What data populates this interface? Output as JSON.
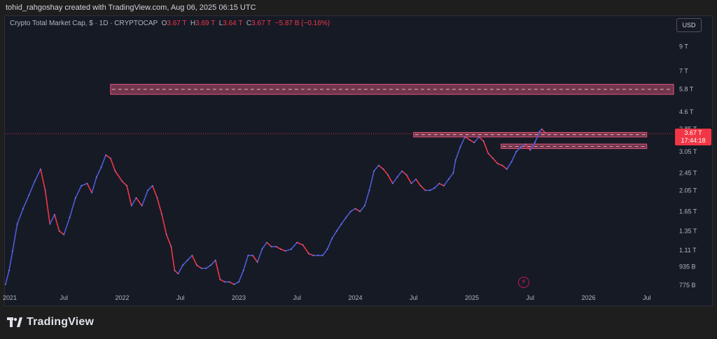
{
  "header": {
    "attribution": "tohid_rahgoshay created with TradingView.com, Aug 06, 2025 06:15 UTC"
  },
  "legend": {
    "symbol": "Crypto Total Market Cap, $ · 1D · CRYPTOCAP",
    "o_label": "O",
    "o_value": "3.67 T",
    "h_label": "H",
    "h_value": "3.69 T",
    "l_label": "L",
    "l_value": "3.64 T",
    "c_label": "C",
    "c_value": "3.67 T",
    "change": "−5.87 B (−0.16%)"
  },
  "currency_button": "USD",
  "last_price": {
    "value": "3.67 T",
    "countdown": "17:44:18"
  },
  "brand": {
    "name": "TradingView"
  },
  "colors": {
    "up": "#4d5bd6",
    "down": "#f23645",
    "zone": "#e0567c",
    "background": "#161a25"
  },
  "chart_data": {
    "type": "line",
    "title": "Crypto Total Market Cap, $ · 1D · CRYPTOCAP",
    "y_scale": "log",
    "ylim_trillions": [
      0.72,
      10.5
    ],
    "y_ticks": [
      {
        "label": "9 T",
        "value": 9.0
      },
      {
        "label": "7 T",
        "value": 7.0
      },
      {
        "label": "5.8 T",
        "value": 5.8
      },
      {
        "label": "4.6 T",
        "value": 4.6
      },
      {
        "label": "3.85 T",
        "value": 3.85
      },
      {
        "label": "3.05 T",
        "value": 3.05
      },
      {
        "label": "2.45 T",
        "value": 2.45
      },
      {
        "label": "2.05 T",
        "value": 2.05
      },
      {
        "label": "1.65 T",
        "value": 1.65
      },
      {
        "label": "1.35 T",
        "value": 1.35
      },
      {
        "label": "1.11 T",
        "value": 1.11
      },
      {
        "label": "935 B",
        "value": 0.935
      },
      {
        "label": "775 B",
        "value": 0.775
      }
    ],
    "x_ticks": [
      {
        "label": "2021",
        "t": 2021.0
      },
      {
        "label": "Jul",
        "t": 2021.5
      },
      {
        "label": "2022",
        "t": 2022.0
      },
      {
        "label": "Jul",
        "t": 2022.5
      },
      {
        "label": "2023",
        "t": 2023.0
      },
      {
        "label": "Jul",
        "t": 2023.5
      },
      {
        "label": "2024",
        "t": 2024.0
      },
      {
        "label": "Jul",
        "t": 2024.5
      },
      {
        "label": "2025",
        "t": 2025.0
      },
      {
        "label": "Jul",
        "t": 2025.5
      },
      {
        "label": "2026",
        "t": 2026.0
      },
      {
        "label": "Jul",
        "t": 2026.5
      }
    ],
    "series": [
      {
        "points": [
          [
            2021.0,
            0.78
          ],
          [
            2021.03,
            0.9
          ],
          [
            2021.06,
            1.1
          ],
          [
            2021.1,
            1.45
          ],
          [
            2021.15,
            1.7
          ],
          [
            2021.2,
            1.95
          ],
          [
            2021.25,
            2.25
          ],
          [
            2021.3,
            2.55
          ],
          [
            2021.34,
            2.05
          ],
          [
            2021.38,
            1.45
          ],
          [
            2021.42,
            1.6
          ],
          [
            2021.46,
            1.35
          ],
          [
            2021.5,
            1.3
          ],
          [
            2021.55,
            1.55
          ],
          [
            2021.6,
            1.9
          ],
          [
            2021.65,
            2.15
          ],
          [
            2021.7,
            2.2
          ],
          [
            2021.74,
            2.0
          ],
          [
            2021.78,
            2.35
          ],
          [
            2021.82,
            2.6
          ],
          [
            2021.86,
            2.95
          ],
          [
            2021.9,
            2.85
          ],
          [
            2021.94,
            2.5
          ],
          [
            2022.0,
            2.25
          ],
          [
            2022.04,
            2.15
          ],
          [
            2022.08,
            1.75
          ],
          [
            2022.12,
            1.9
          ],
          [
            2022.17,
            1.75
          ],
          [
            2022.22,
            2.05
          ],
          [
            2022.26,
            2.15
          ],
          [
            2022.3,
            1.9
          ],
          [
            2022.34,
            1.6
          ],
          [
            2022.38,
            1.3
          ],
          [
            2022.42,
            1.15
          ],
          [
            2022.45,
            0.9
          ],
          [
            2022.48,
            0.87
          ],
          [
            2022.52,
            0.95
          ],
          [
            2022.56,
            1.0
          ],
          [
            2022.6,
            1.05
          ],
          [
            2022.64,
            0.95
          ],
          [
            2022.68,
            0.92
          ],
          [
            2022.72,
            0.92
          ],
          [
            2022.76,
            0.95
          ],
          [
            2022.8,
            1.0
          ],
          [
            2022.84,
            0.82
          ],
          [
            2022.88,
            0.8
          ],
          [
            2022.92,
            0.8
          ],
          [
            2022.96,
            0.78
          ],
          [
            2023.0,
            0.8
          ],
          [
            2023.04,
            0.9
          ],
          [
            2023.08,
            1.05
          ],
          [
            2023.12,
            1.05
          ],
          [
            2023.16,
            0.98
          ],
          [
            2023.2,
            1.12
          ],
          [
            2023.24,
            1.2
          ],
          [
            2023.28,
            1.15
          ],
          [
            2023.32,
            1.15
          ],
          [
            2023.36,
            1.12
          ],
          [
            2023.4,
            1.1
          ],
          [
            2023.45,
            1.12
          ],
          [
            2023.5,
            1.2
          ],
          [
            2023.55,
            1.17
          ],
          [
            2023.6,
            1.07
          ],
          [
            2023.64,
            1.05
          ],
          [
            2023.68,
            1.05
          ],
          [
            2023.72,
            1.05
          ],
          [
            2023.76,
            1.12
          ],
          [
            2023.8,
            1.25
          ],
          [
            2023.84,
            1.35
          ],
          [
            2023.88,
            1.45
          ],
          [
            2023.92,
            1.55
          ],
          [
            2023.96,
            1.65
          ],
          [
            2024.0,
            1.7
          ],
          [
            2024.04,
            1.65
          ],
          [
            2024.08,
            1.75
          ],
          [
            2024.12,
            2.05
          ],
          [
            2024.16,
            2.5
          ],
          [
            2024.2,
            2.65
          ],
          [
            2024.24,
            2.55
          ],
          [
            2024.28,
            2.4
          ],
          [
            2024.32,
            2.2
          ],
          [
            2024.36,
            2.35
          ],
          [
            2024.4,
            2.5
          ],
          [
            2024.44,
            2.4
          ],
          [
            2024.48,
            2.2
          ],
          [
            2024.52,
            2.3
          ],
          [
            2024.56,
            2.15
          ],
          [
            2024.6,
            2.05
          ],
          [
            2024.64,
            2.05
          ],
          [
            2024.68,
            2.1
          ],
          [
            2024.72,
            2.2
          ],
          [
            2024.76,
            2.15
          ],
          [
            2024.8,
            2.3
          ],
          [
            2024.84,
            2.45
          ],
          [
            2024.86,
            2.8
          ],
          [
            2024.9,
            3.2
          ],
          [
            2024.94,
            3.55
          ],
          [
            2024.98,
            3.45
          ],
          [
            2025.02,
            3.35
          ],
          [
            2025.06,
            3.55
          ],
          [
            2025.1,
            3.4
          ],
          [
            2025.14,
            3.0
          ],
          [
            2025.18,
            2.85
          ],
          [
            2025.22,
            2.7
          ],
          [
            2025.26,
            2.65
          ],
          [
            2025.3,
            2.55
          ],
          [
            2025.34,
            2.75
          ],
          [
            2025.38,
            3.05
          ],
          [
            2025.42,
            3.2
          ],
          [
            2025.46,
            3.3
          ],
          [
            2025.5,
            3.1
          ],
          [
            2025.54,
            3.35
          ],
          [
            2025.58,
            3.75
          ],
          [
            2025.6,
            3.85
          ],
          [
            2025.63,
            3.7
          ]
        ]
      }
    ],
    "zones": [
      {
        "t_start": 2021.9,
        "t_end": 2026.9,
        "top": 6.1,
        "bottom": 5.5
      },
      {
        "t_start": 2024.5,
        "t_end": 2026.5,
        "top": 3.72,
        "bottom": 3.55
      },
      {
        "t_start": 2025.25,
        "t_end": 2026.5,
        "top": 3.3,
        "bottom": 3.15
      }
    ],
    "last_value": 3.67
  }
}
